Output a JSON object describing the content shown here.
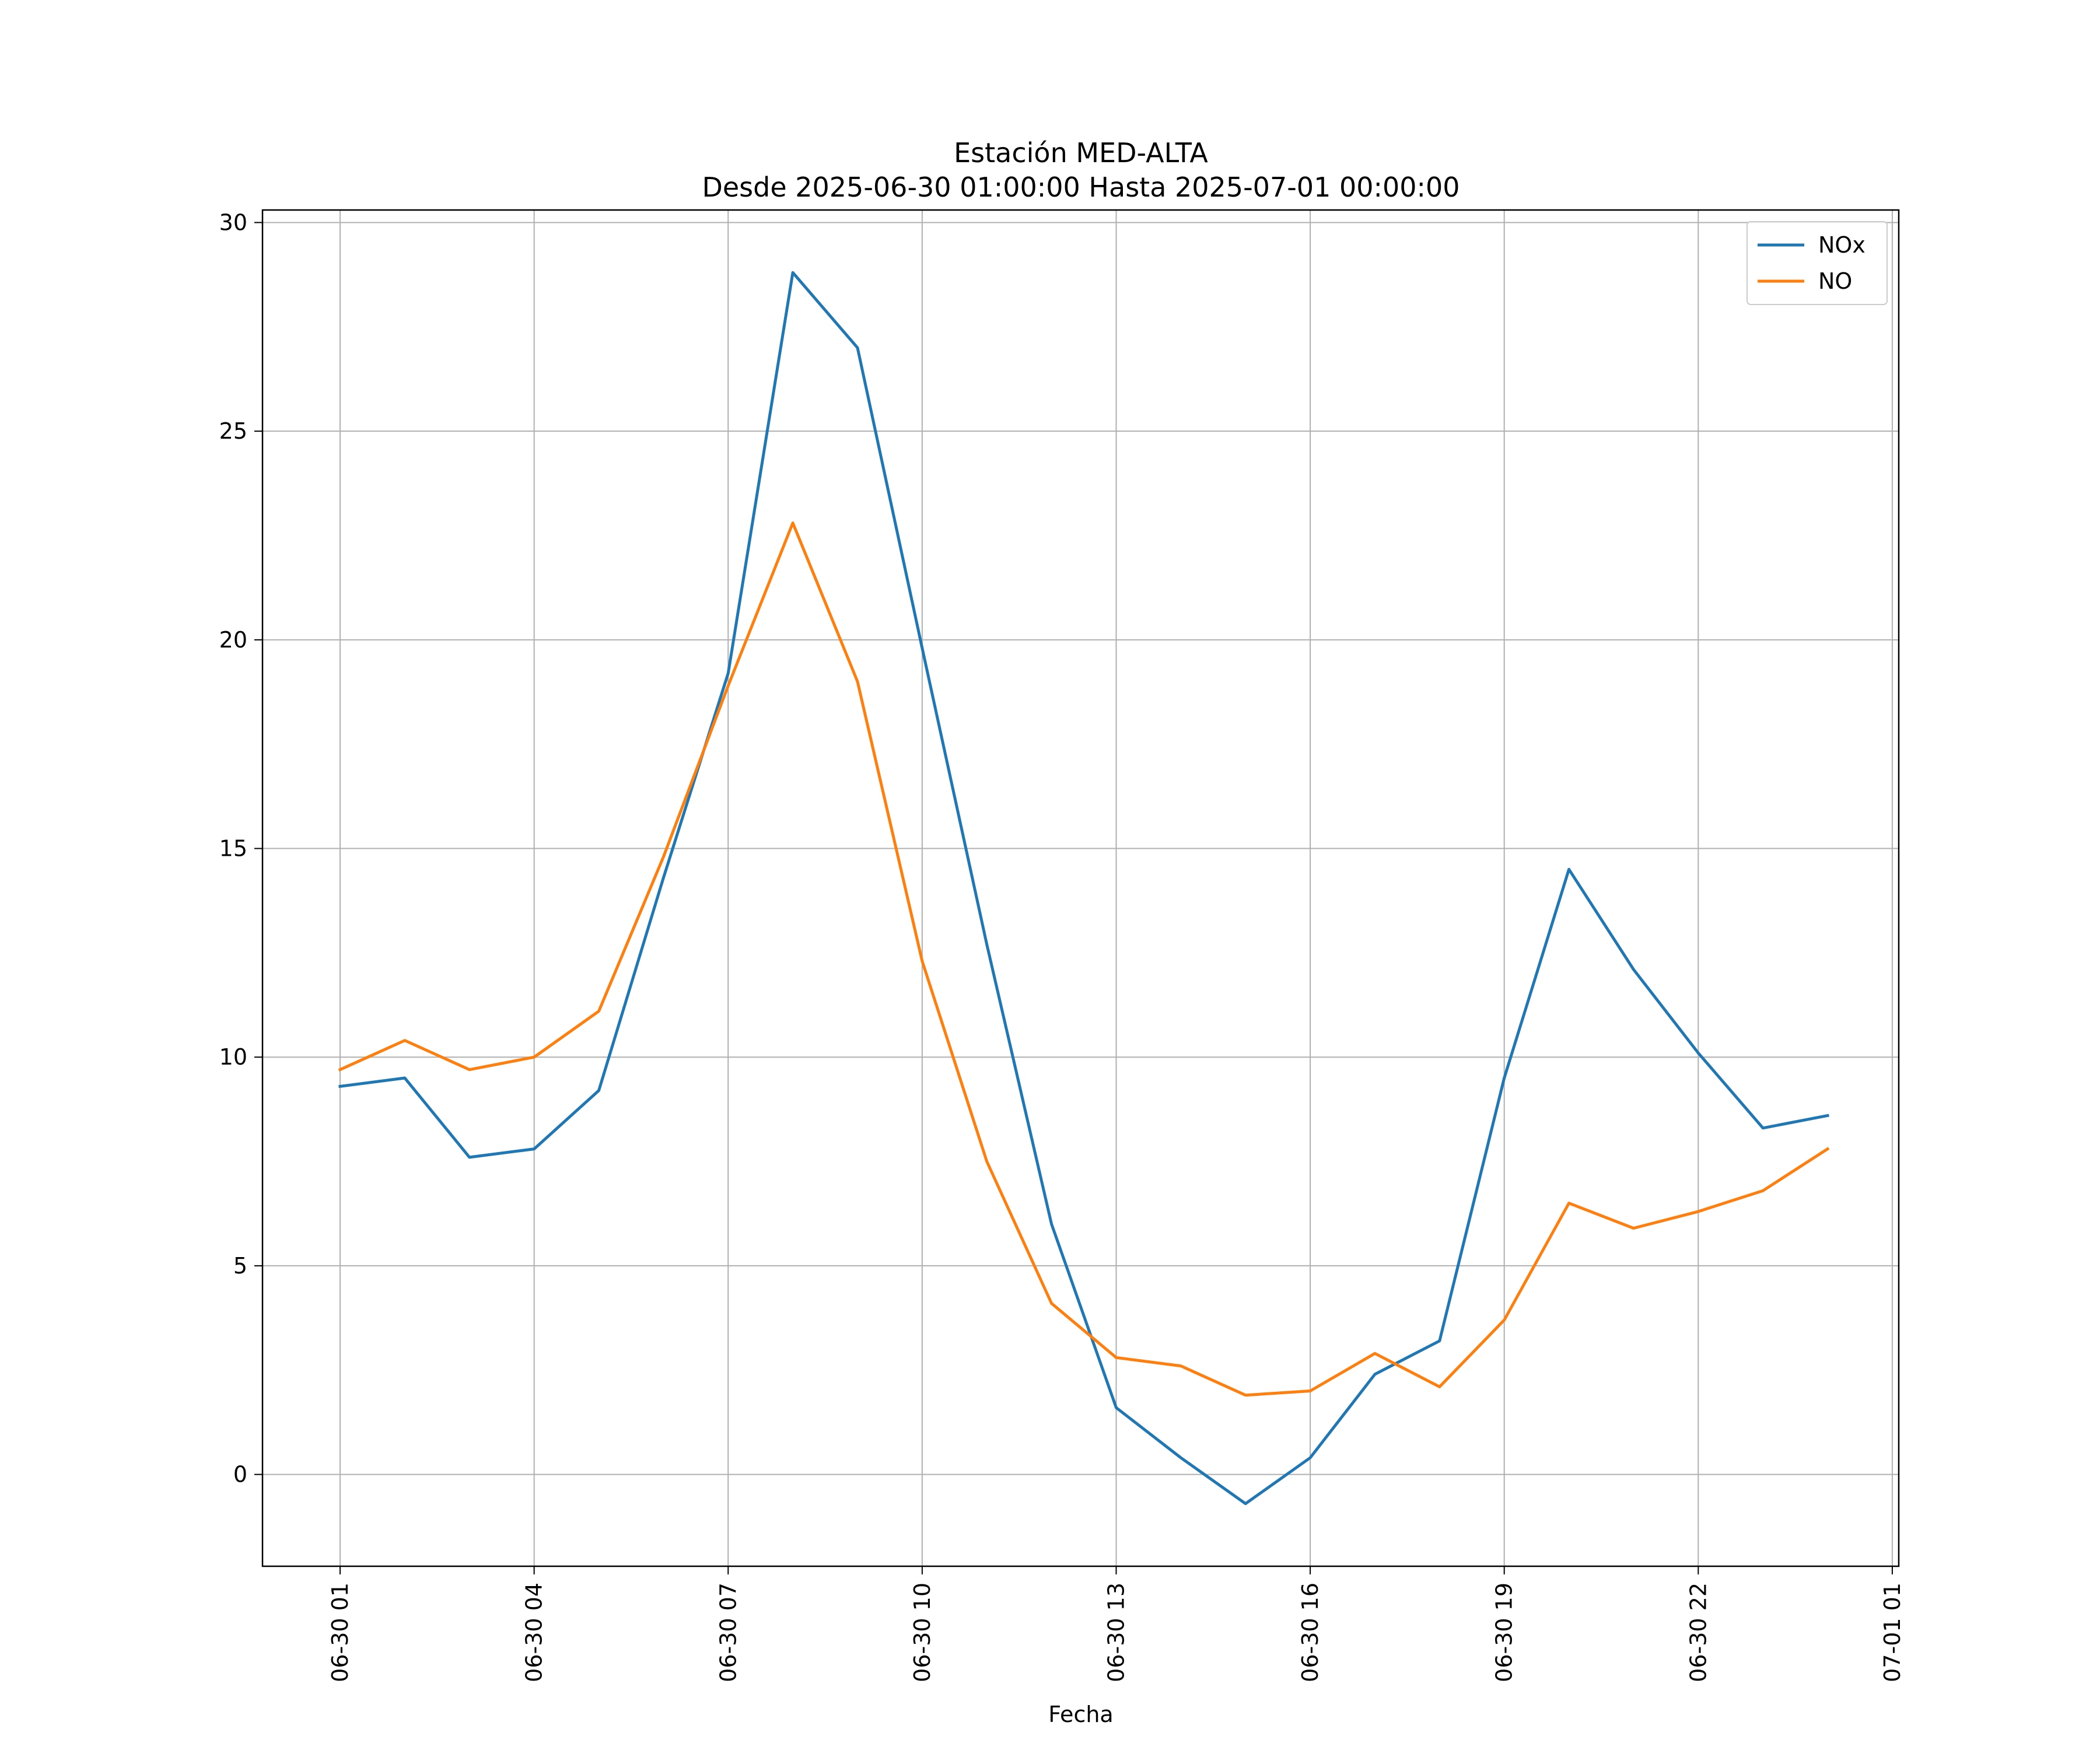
{
  "chart_data": {
    "type": "line",
    "title": "Estación MED-ALTA",
    "subtitle": "Desde 2025-06-30 01:00:00 Hasta 2025-07-01 00:00:00",
    "xlabel": "Fecha",
    "ylabel": "",
    "x": [
      "2025-06-30 01:00",
      "2025-06-30 02:00",
      "2025-06-30 03:00",
      "2025-06-30 04:00",
      "2025-06-30 05:00",
      "2025-06-30 06:00",
      "2025-06-30 07:00",
      "2025-06-30 08:00",
      "2025-06-30 09:00",
      "2025-06-30 10:00",
      "2025-06-30 11:00",
      "2025-06-30 12:00",
      "2025-06-30 13:00",
      "2025-06-30 14:00",
      "2025-06-30 15:00",
      "2025-06-30 16:00",
      "2025-06-30 17:00",
      "2025-06-30 18:00",
      "2025-06-30 19:00",
      "2025-06-30 20:00",
      "2025-06-30 21:00",
      "2025-06-30 22:00",
      "2025-06-30 23:00",
      "2025-07-01 00:00"
    ],
    "series": [
      {
        "name": "NOx",
        "color": "#1f77b4",
        "values": [
          9.3,
          9.5,
          7.6,
          7.8,
          9.2,
          14.3,
          19.2,
          28.8,
          27.0,
          19.8,
          12.7,
          6.0,
          1.6,
          0.4,
          -0.7,
          0.4,
          2.4,
          3.2,
          9.5,
          14.5,
          12.1,
          10.1,
          8.3,
          8.6
        ]
      },
      {
        "name": "NO",
        "color": "#ff7f0e",
        "values": [
          9.7,
          10.4,
          9.7,
          10.0,
          11.1,
          14.8,
          18.9,
          22.8,
          19.0,
          12.3,
          7.5,
          4.1,
          2.8,
          2.6,
          1.9,
          2.0,
          2.9,
          2.1,
          3.7,
          6.5,
          5.9,
          6.3,
          6.8,
          7.8
        ]
      }
    ],
    "xticks": [
      "06-30 01",
      "06-30 04",
      "06-30 07",
      "06-30 10",
      "06-30 13",
      "06-30 16",
      "06-30 19",
      "06-30 22",
      "07-01 01"
    ],
    "xtick_hours": [
      1,
      4,
      7,
      10,
      13,
      16,
      19,
      22,
      25
    ],
    "yticks": [
      0,
      5,
      10,
      15,
      20,
      25,
      30
    ],
    "ylim": [
      -2.2,
      30.3
    ],
    "xlim_hours": [
      -0.2,
      25.1
    ],
    "grid": true,
    "legend_position": "top-right"
  }
}
